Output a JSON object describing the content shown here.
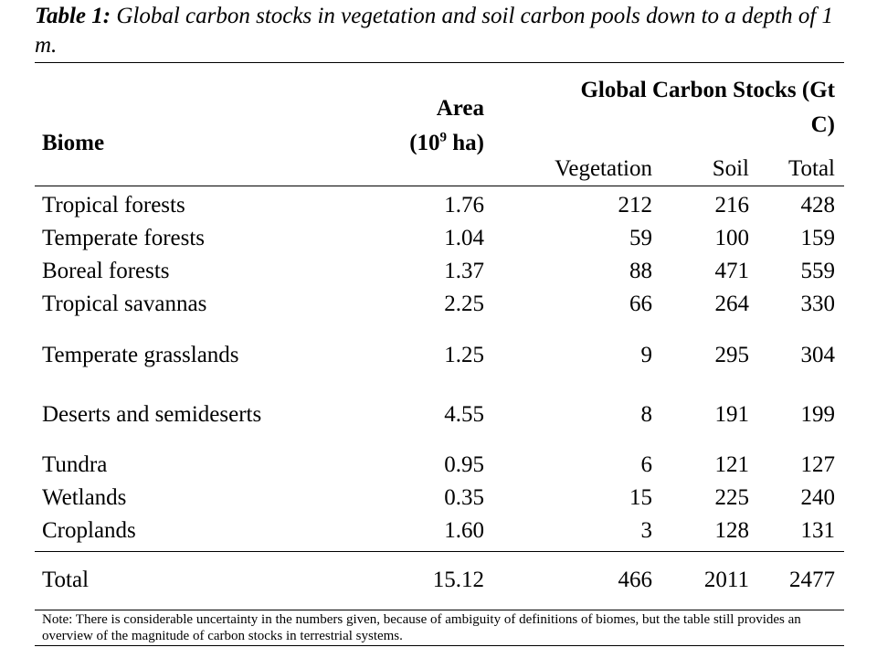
{
  "caption": {
    "label": "Table 1:",
    "text": " Global carbon stocks in vegetation and soil carbon pools down to a depth of 1 m."
  },
  "header": {
    "biome": "Biome",
    "area_line1": "Area",
    "area_line2_pre": "(10",
    "area_sup": "9",
    "area_line2_post": " ha)",
    "stocks_line1": "Global Carbon Stocks (Gt",
    "stocks_line2": "C)",
    "vegetation": "Vegetation",
    "soil": "Soil",
    "total": "Total"
  },
  "rows": [
    {
      "biome": "Tropical forests",
      "area": "1.76",
      "vegetation": "212",
      "soil": "216",
      "total": "428"
    },
    {
      "biome": "Temperate forests",
      "area": "1.04",
      "vegetation": "59",
      "soil": "100",
      "total": "159"
    },
    {
      "biome": "Boreal forests",
      "area": "1.37",
      "vegetation": "88",
      "soil": "471",
      "total": "559"
    },
    {
      "biome": "Tropical savannas",
      "area": "2.25",
      "vegetation": "66",
      "soil": "264",
      "total": "330"
    },
    {
      "biome": "Temperate grasslands",
      "area": "1.25",
      "vegetation": "9",
      "soil": "295",
      "total": "304"
    },
    {
      "biome": "Deserts and semideserts",
      "area": "4.55",
      "vegetation": "8",
      "soil": "191",
      "total": "199"
    },
    {
      "biome": "Tundra",
      "area": "0.95",
      "vegetation": "6",
      "soil": "121",
      "total": "127"
    },
    {
      "biome": "Wetlands",
      "area": "0.35",
      "vegetation": "15",
      "soil": "225",
      "total": "240"
    },
    {
      "biome": "Croplands",
      "area": "1.60",
      "vegetation": "3",
      "soil": "128",
      "total": "131"
    }
  ],
  "total_row": {
    "biome": "Total",
    "area": "15.12",
    "vegetation": "466",
    "soil": "2011",
    "total": "2477"
  },
  "note": "Note: There is considerable uncertainty in the numbers given, because of ambiguity of definitions of biomes, but the table still provides an overview of the magnitude of carbon stocks in terrestrial systems."
}
